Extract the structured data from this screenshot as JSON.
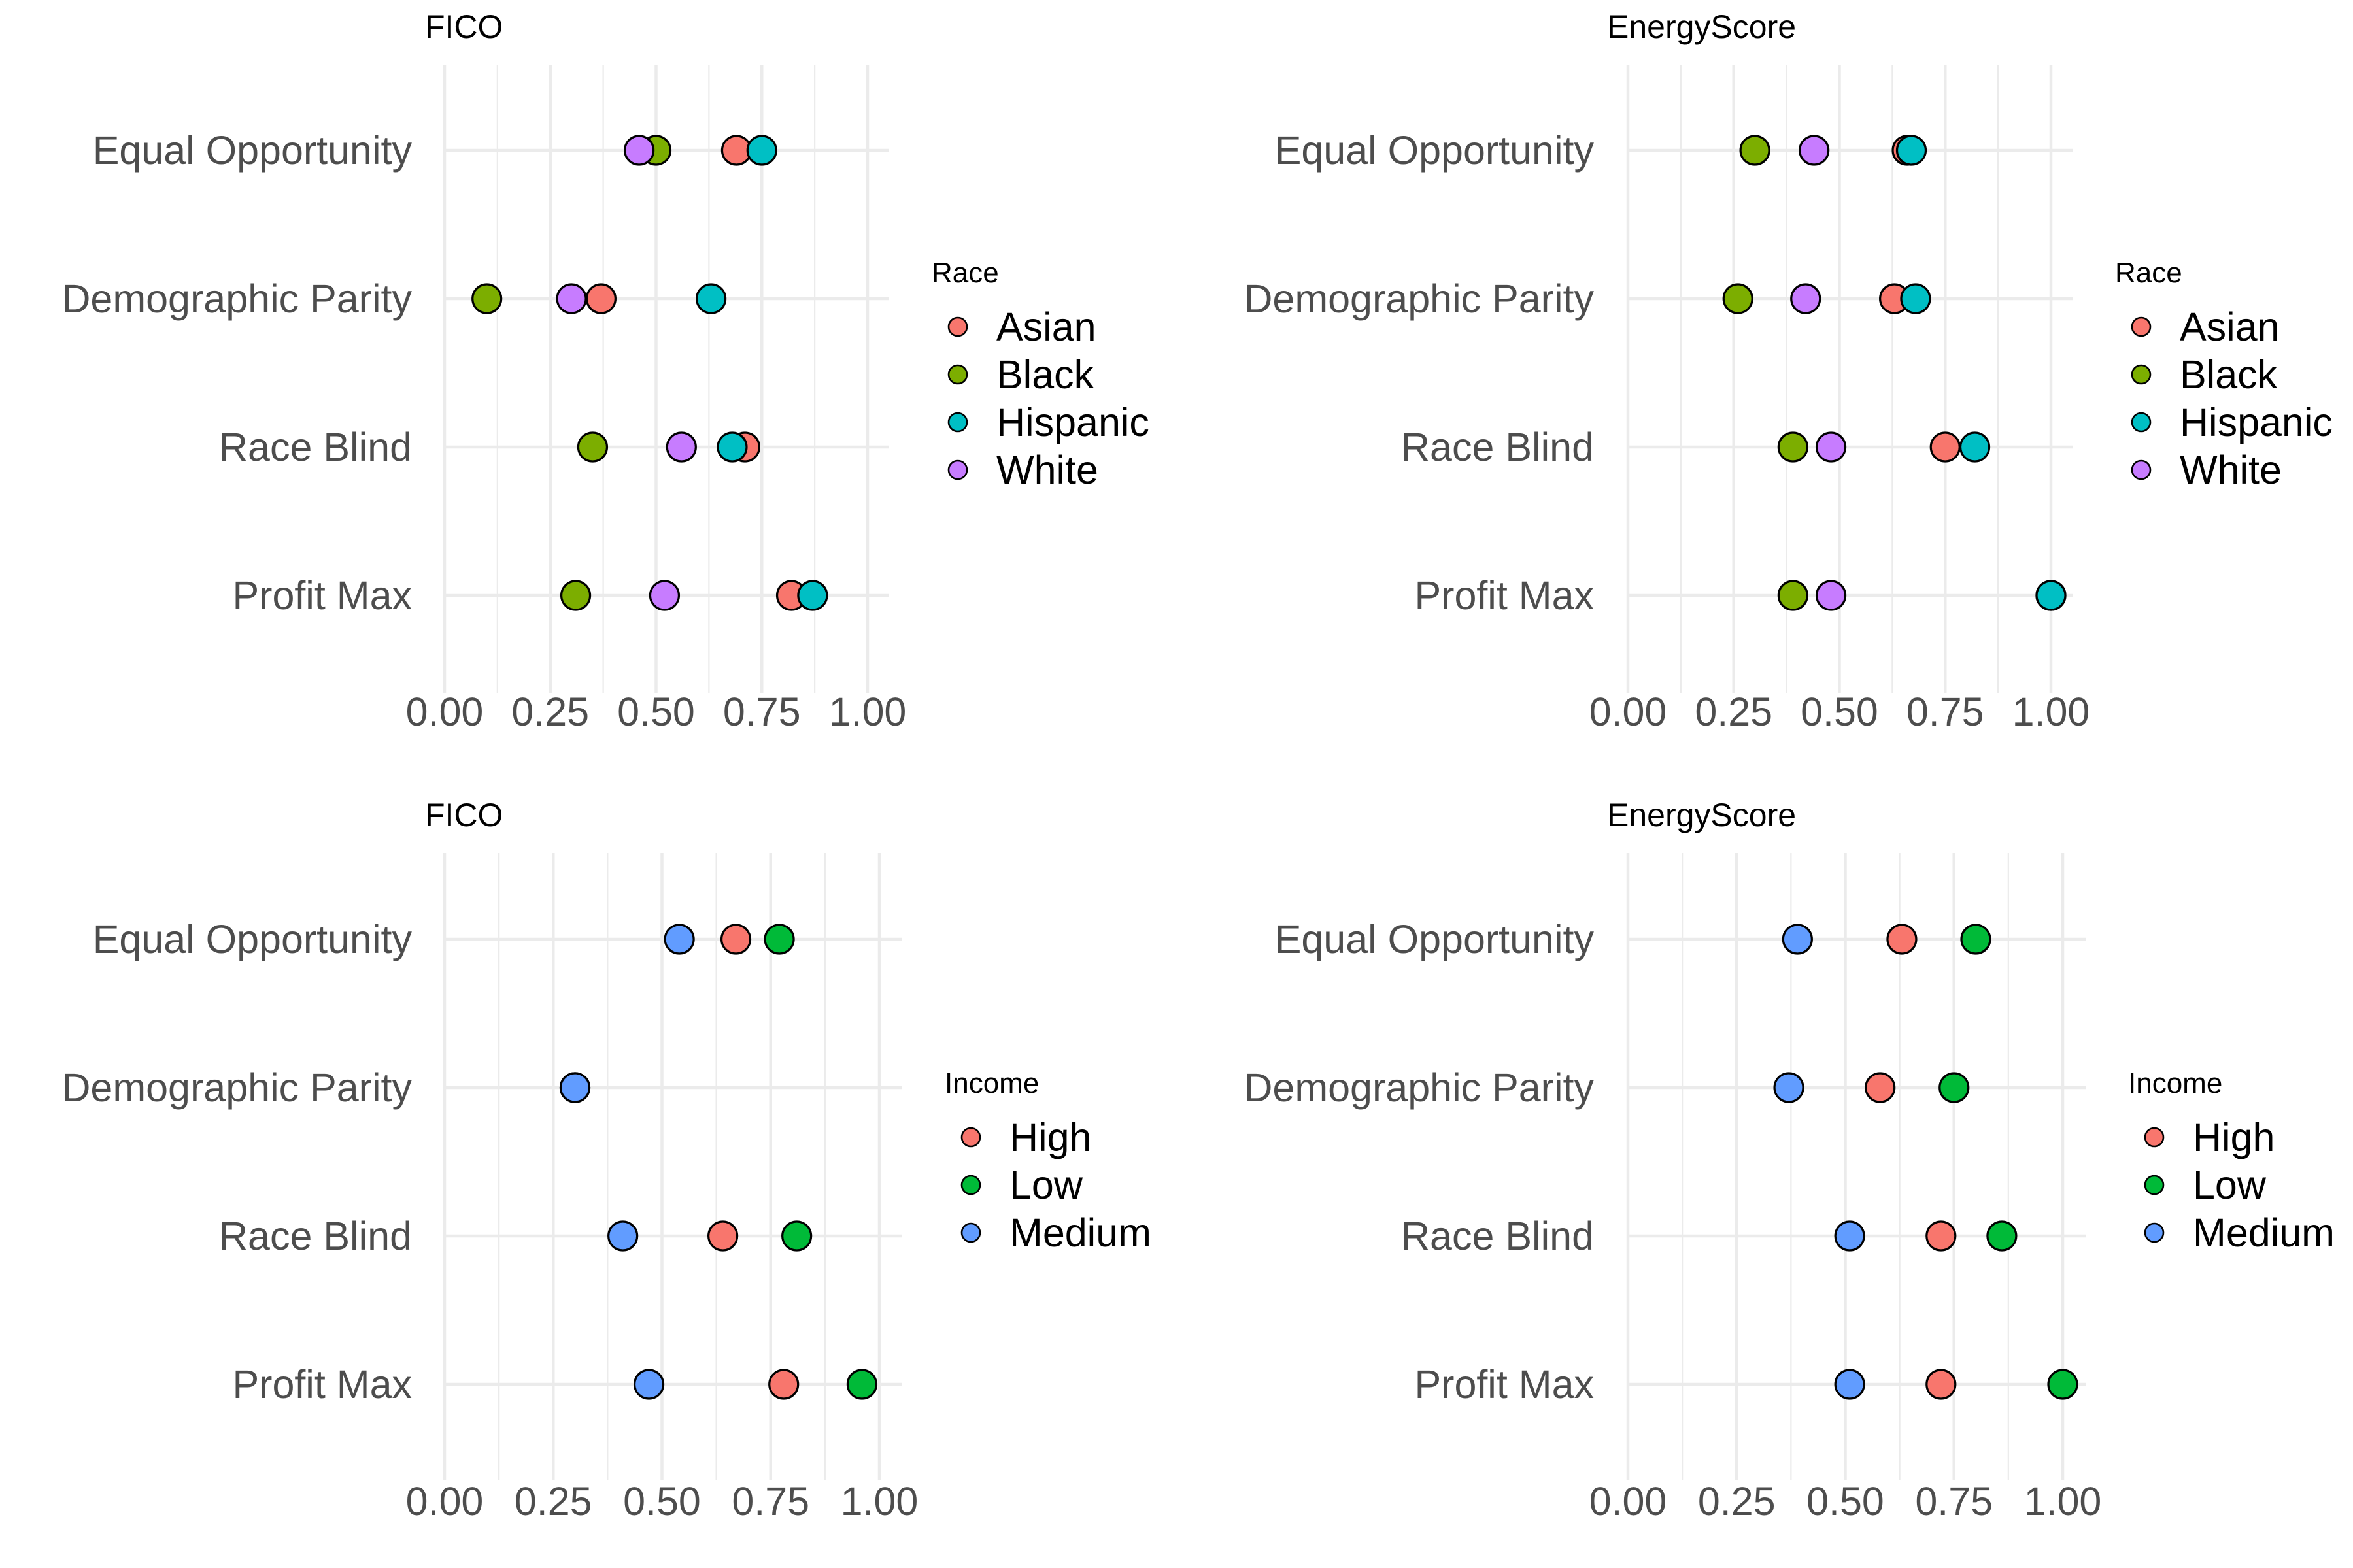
{
  "chart_data": [
    {
      "type": "scatter",
      "title": "FICO",
      "xlabel": "",
      "ylabel": "",
      "xlim": [
        0,
        1
      ],
      "xticks": [
        "0.00",
        "0.25",
        "0.50",
        "0.75",
        "1.00"
      ],
      "categories": [
        "Equal Opportunity",
        "Demographic Parity",
        "Race Blind",
        "Profit Max"
      ],
      "legend": {
        "title": "Race",
        "position": "right"
      },
      "grid": true,
      "series": [
        {
          "name": "Asian",
          "color": "#F8766D",
          "values": [
            0.69,
            0.37,
            0.71,
            0.82
          ]
        },
        {
          "name": "Black",
          "color": "#7CAE00",
          "values": [
            0.5,
            0.1,
            0.35,
            0.31
          ]
        },
        {
          "name": "Hispanic",
          "color": "#00BFC4",
          "values": [
            0.75,
            0.63,
            0.68,
            0.87
          ]
        },
        {
          "name": "White",
          "color": "#C77CFF",
          "values": [
            0.46,
            0.3,
            0.56,
            0.52
          ]
        }
      ]
    },
    {
      "type": "scatter",
      "title": "EnergyScore",
      "xlabel": "",
      "ylabel": "",
      "xlim": [
        0,
        1
      ],
      "xticks": [
        "0.00",
        "0.25",
        "0.50",
        "0.75",
        "1.00"
      ],
      "categories": [
        "Equal Opportunity",
        "Demographic Parity",
        "Race Blind",
        "Profit Max"
      ],
      "legend": {
        "title": "Race",
        "position": "right"
      },
      "grid": true,
      "series": [
        {
          "name": "Asian",
          "color": "#F8766D",
          "values": [
            0.66,
            0.63,
            0.75,
            1.0
          ]
        },
        {
          "name": "Black",
          "color": "#7CAE00",
          "values": [
            0.3,
            0.26,
            0.39,
            0.39
          ]
        },
        {
          "name": "Hispanic",
          "color": "#00BFC4",
          "values": [
            0.67,
            0.68,
            0.82,
            1.0
          ]
        },
        {
          "name": "White",
          "color": "#C77CFF",
          "values": [
            0.44,
            0.42,
            0.48,
            0.48
          ]
        }
      ]
    },
    {
      "type": "scatter",
      "title": "FICO",
      "xlabel": "",
      "ylabel": "",
      "xlim": [
        0,
        1
      ],
      "xticks": [
        "0.00",
        "0.25",
        "0.50",
        "0.75",
        "1.00"
      ],
      "categories": [
        "Equal Opportunity",
        "Demographic Parity",
        "Race Blind",
        "Profit Max"
      ],
      "legend": {
        "title": "Income",
        "position": "right"
      },
      "grid": true,
      "series": [
        {
          "name": "High",
          "color": "#F8766D",
          "values": [
            0.67,
            0.3,
            0.64,
            0.78
          ]
        },
        {
          "name": "Low",
          "color": "#00BA38",
          "values": [
            0.77,
            0.3,
            0.81,
            0.96
          ]
        },
        {
          "name": "Medium",
          "color": "#619CFF",
          "values": [
            0.54,
            0.3,
            0.41,
            0.47
          ]
        }
      ]
    },
    {
      "type": "scatter",
      "title": "EnergyScore",
      "xlabel": "",
      "ylabel": "",
      "xlim": [
        0,
        1
      ],
      "xticks": [
        "0.00",
        "0.25",
        "0.50",
        "0.75",
        "1.00"
      ],
      "categories": [
        "Equal Opportunity",
        "Demographic Parity",
        "Race Blind",
        "Profit Max"
      ],
      "legend": {
        "title": "Income",
        "position": "right"
      },
      "grid": true,
      "series": [
        {
          "name": "High",
          "color": "#F8766D",
          "values": [
            0.63,
            0.58,
            0.72,
            0.72
          ]
        },
        {
          "name": "Low",
          "color": "#00BA38",
          "values": [
            0.8,
            0.75,
            0.86,
            1.0
          ]
        },
        {
          "name": "Medium",
          "color": "#619CFF",
          "values": [
            0.39,
            0.37,
            0.51,
            0.51
          ]
        }
      ]
    }
  ]
}
